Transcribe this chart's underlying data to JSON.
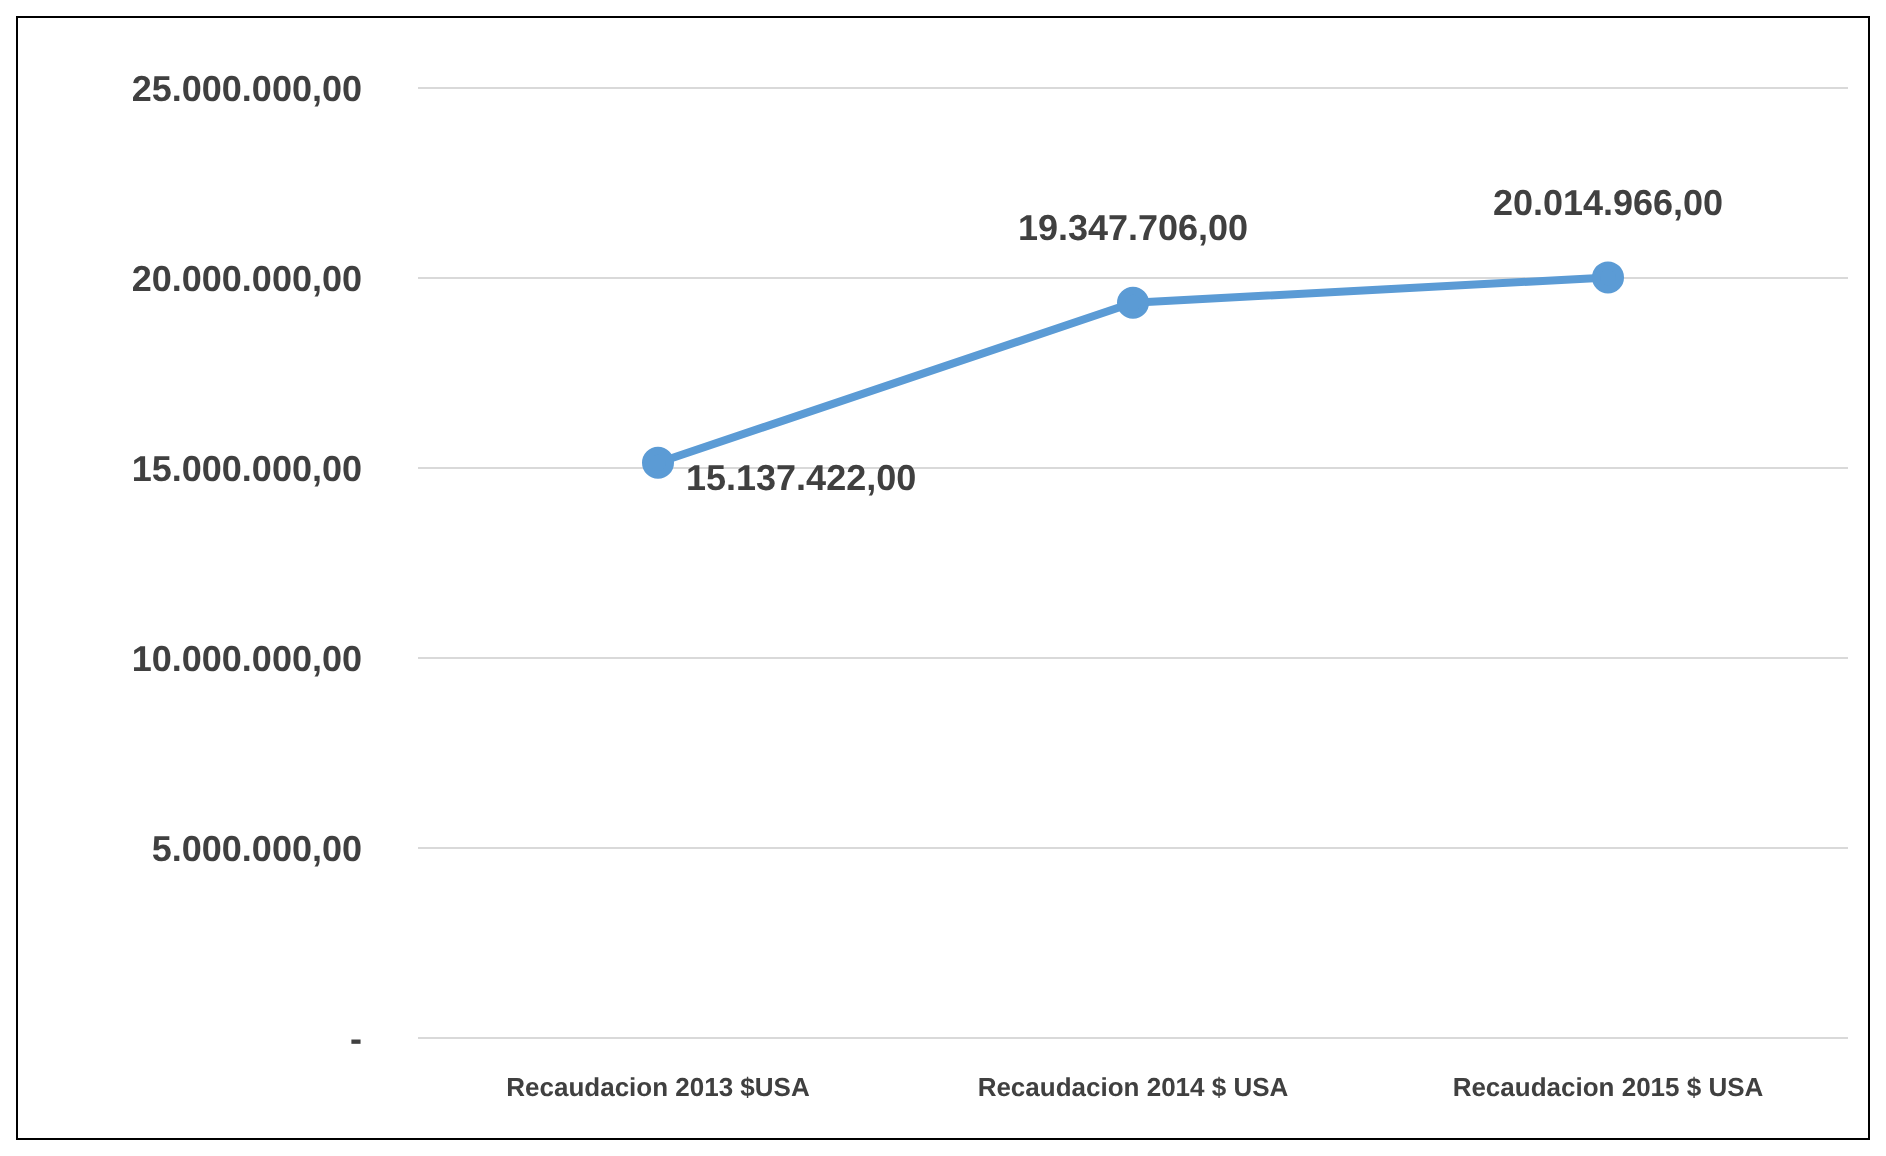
{
  "chart_data": {
    "type": "line",
    "categories": [
      "Recaudacion 2013 $USA",
      "Recaudacion 2014 $ USA",
      "Recaudacion 2015 $ USA"
    ],
    "series": [
      {
        "color": "#5b9bd5",
        "values": [
          15137422,
          19347706,
          20014966
        ],
        "value_labels": [
          "15.137.422,00",
          "19.347.706,00",
          "20.014.966,00"
        ]
      }
    ],
    "ylim": [
      0,
      25000000
    ],
    "yticks": [
      {
        "value": 0,
        "label": "-"
      },
      {
        "value": 5000000,
        "label": "5.000.000,00"
      },
      {
        "value": 10000000,
        "label": "10.000.000,00"
      },
      {
        "value": 15000000,
        "label": "15.000.000,00"
      },
      {
        "value": 20000000,
        "label": "20.000.000,00"
      },
      {
        "value": 25000000,
        "label": "25.000.000,00"
      }
    ],
    "grid": "y",
    "legend": false,
    "marker": "circle",
    "line_style": "solid"
  }
}
